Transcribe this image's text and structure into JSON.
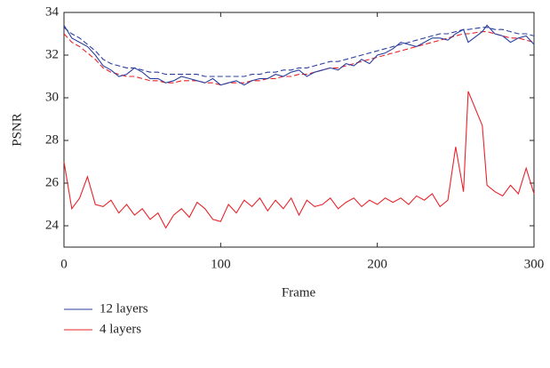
{
  "chart_data": {
    "type": "line",
    "xlabel": "Frame",
    "ylabel": "PSNR",
    "x": [
      0,
      5,
      10,
      15,
      20,
      25,
      30,
      35,
      40,
      45,
      50,
      55,
      60,
      65,
      70,
      75,
      80,
      85,
      90,
      95,
      100,
      105,
      110,
      115,
      120,
      125,
      130,
      135,
      140,
      145,
      150,
      155,
      160,
      165,
      170,
      175,
      180,
      185,
      190,
      195,
      200,
      205,
      210,
      215,
      220,
      225,
      230,
      235,
      240,
      245,
      250,
      255,
      258,
      267,
      270,
      275,
      280,
      285,
      290,
      295,
      300
    ],
    "xlim": [
      0,
      300
    ],
    "xticks": [
      0,
      100,
      200,
      300
    ],
    "ylim": [
      23,
      34
    ],
    "yticks": [
      24,
      26,
      28,
      30,
      32,
      34
    ],
    "legend": "bottom-left",
    "series": [
      {
        "color": "#e8232a",
        "dashed": true,
        "values": [
          33.0,
          32.6,
          32.4,
          32.1,
          31.8,
          31.4,
          31.2,
          31.1,
          31.0,
          31.0,
          30.9,
          30.8,
          30.8,
          30.7,
          30.7,
          30.8,
          30.8,
          30.8,
          30.7,
          30.7,
          30.6,
          30.7,
          30.7,
          30.7,
          30.8,
          30.8,
          30.9,
          30.9,
          31.0,
          31.0,
          31.1,
          31.1,
          31.2,
          31.3,
          31.4,
          31.4,
          31.5,
          31.6,
          31.7,
          31.8,
          31.9,
          32.0,
          32.1,
          32.2,
          32.3,
          32.4,
          32.5,
          32.6,
          32.7,
          32.8,
          32.9,
          33.0,
          33.0,
          33.1,
          33.1,
          33.0,
          32.9,
          32.8,
          32.8,
          32.7,
          32.6
        ]
      },
      {
        "color": "#2b3f9e",
        "dashed": true,
        "values": [
          33.3,
          33.0,
          32.8,
          32.5,
          32.2,
          31.8,
          31.6,
          31.5,
          31.4,
          31.4,
          31.3,
          31.2,
          31.2,
          31.1,
          31.1,
          31.1,
          31.1,
          31.1,
          31.0,
          31.0,
          31.0,
          31.0,
          31.0,
          31.0,
          31.1,
          31.1,
          31.2,
          31.2,
          31.3,
          31.3,
          31.4,
          31.4,
          31.5,
          31.6,
          31.7,
          31.7,
          31.8,
          31.9,
          32.0,
          32.1,
          32.2,
          32.3,
          32.4,
          32.5,
          32.6,
          32.7,
          32.8,
          32.9,
          33.0,
          33.0,
          33.1,
          33.2,
          33.2,
          33.3,
          33.3,
          33.2,
          33.2,
          33.1,
          33.0,
          33.0,
          32.9
        ]
      },
      {
        "name": "12 layers",
        "color": "#2b3f9e",
        "dashed": false,
        "values": [
          33.4,
          32.8,
          32.6,
          32.4,
          32.0,
          31.5,
          31.3,
          31.0,
          31.1,
          31.4,
          31.2,
          30.9,
          30.9,
          30.7,
          30.8,
          31.0,
          30.9,
          30.8,
          30.7,
          30.9,
          30.6,
          30.7,
          30.8,
          30.6,
          30.8,
          30.9,
          30.9,
          31.1,
          31.0,
          31.2,
          31.3,
          31.0,
          31.2,
          31.3,
          31.4,
          31.3,
          31.6,
          31.5,
          31.8,
          31.6,
          32.0,
          32.1,
          32.3,
          32.6,
          32.5,
          32.4,
          32.6,
          32.8,
          32.8,
          32.7,
          33.0,
          33.2,
          32.6,
          33.1,
          33.4,
          33.0,
          32.9,
          32.6,
          32.8,
          32.9,
          32.5
        ]
      },
      {
        "name": "4 layers",
        "color": "#e8232a",
        "dashed": false,
        "values": [
          27.0,
          24.8,
          25.3,
          26.3,
          25.0,
          24.9,
          25.2,
          24.6,
          25.0,
          24.5,
          24.8,
          24.3,
          24.6,
          23.9,
          24.5,
          24.8,
          24.4,
          25.1,
          24.8,
          24.3,
          24.2,
          25.0,
          24.6,
          25.2,
          24.9,
          25.3,
          24.7,
          25.2,
          24.8,
          25.3,
          24.5,
          25.2,
          24.9,
          25.0,
          25.3,
          24.8,
          25.1,
          25.3,
          24.9,
          25.2,
          25.0,
          25.3,
          25.1,
          25.3,
          25.0,
          25.4,
          25.2,
          25.5,
          24.9,
          25.2,
          27.7,
          25.6,
          30.3,
          28.7,
          25.9,
          25.6,
          25.4,
          25.9,
          25.5,
          26.7,
          25.5
        ]
      }
    ]
  }
}
